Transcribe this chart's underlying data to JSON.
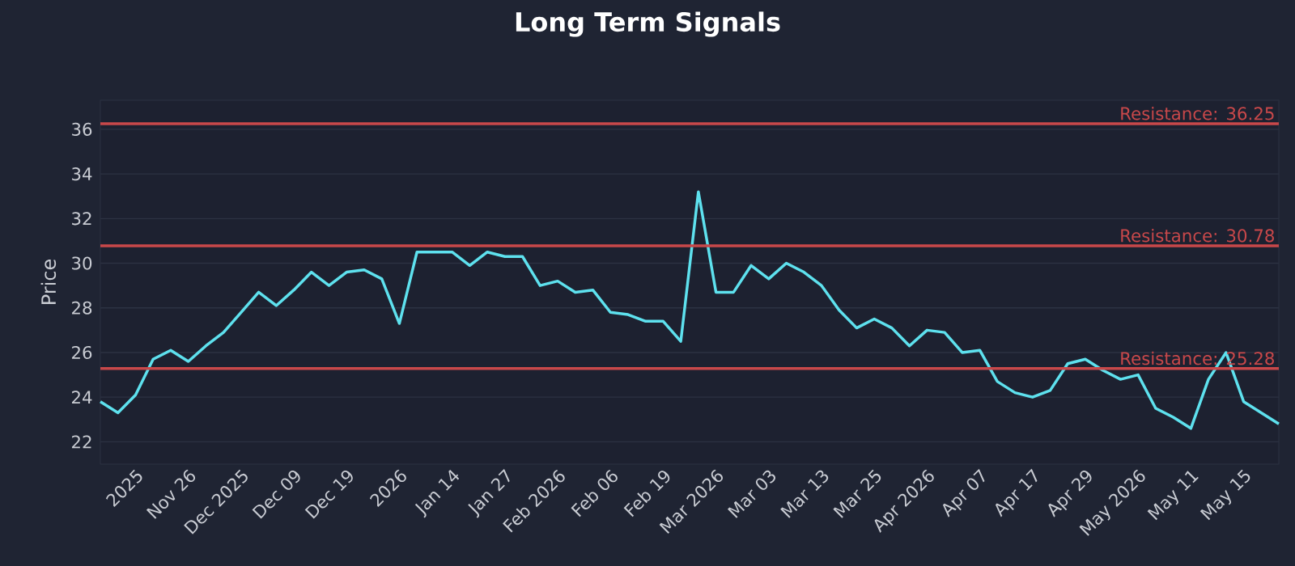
{
  "chart_data": {
    "type": "line",
    "title": "Long Term Signals",
    "ylabel": "Price",
    "categories": [
      null,
      null,
      "2025",
      null,
      null,
      "Nov 26",
      null,
      null,
      "Dec 2025",
      null,
      null,
      "Dec 09",
      null,
      null,
      "Dec 19",
      null,
      null,
      "2026",
      null,
      null,
      "Jan 14",
      null,
      null,
      "Jan 27",
      null,
      null,
      "Feb 2026",
      null,
      null,
      "Feb 06",
      null,
      null,
      "Feb 19",
      null,
      null,
      "Mar 2026",
      null,
      null,
      "Mar 03",
      null,
      null,
      "Mar 13",
      null,
      null,
      "Mar 25",
      null,
      null,
      "Apr 2026",
      null,
      null,
      "Apr 07",
      null,
      null,
      "Apr 17",
      null,
      null,
      "Apr 29",
      null,
      null,
      "May 2026",
      null,
      null,
      "May 11",
      null,
      null,
      "May 15",
      null,
      null
    ],
    "series": [
      {
        "color": "#5ee1ee",
        "values": [
          23.8,
          23.3,
          24.1,
          25.7,
          26.1,
          25.6,
          26.3,
          26.9,
          27.8,
          28.7,
          28.1,
          28.8,
          29.6,
          29.0,
          29.6,
          29.7,
          29.3,
          27.3,
          30.5,
          30.5,
          30.5,
          29.9,
          30.5,
          30.3,
          30.3,
          29.0,
          29.2,
          28.7,
          28.8,
          27.8,
          27.7,
          27.4,
          27.4,
          26.5,
          33.2,
          28.7,
          28.7,
          29.9,
          29.3,
          30.0,
          29.6,
          29.0,
          27.9,
          27.1,
          27.5,
          27.1,
          26.3,
          27.0,
          26.9,
          26.0,
          26.1,
          24.7,
          24.2,
          24.0,
          24.3,
          25.5,
          25.7,
          25.2,
          24.8,
          25.0,
          23.5,
          23.1,
          22.6,
          24.8,
          26.0,
          23.8,
          23.3,
          22.8
        ]
      }
    ],
    "ylim": [
      21,
      37.3
    ],
    "yticks": [
      22,
      24,
      26,
      28,
      30,
      32,
      34,
      36
    ],
    "grid": "y",
    "line_style": "solid",
    "marker": "none",
    "ref_lines": [
      {
        "axis": "y",
        "value": 36.25,
        "label": "Resistance: 36.25",
        "color": "#c8484a"
      },
      {
        "axis": "y",
        "value": 30.78,
        "label": "Resistance: 30.78",
        "color": "#c8484a"
      },
      {
        "axis": "y",
        "value": 25.28,
        "label": "Resistance: 25.28",
        "color": "#c8484a"
      }
    ]
  }
}
